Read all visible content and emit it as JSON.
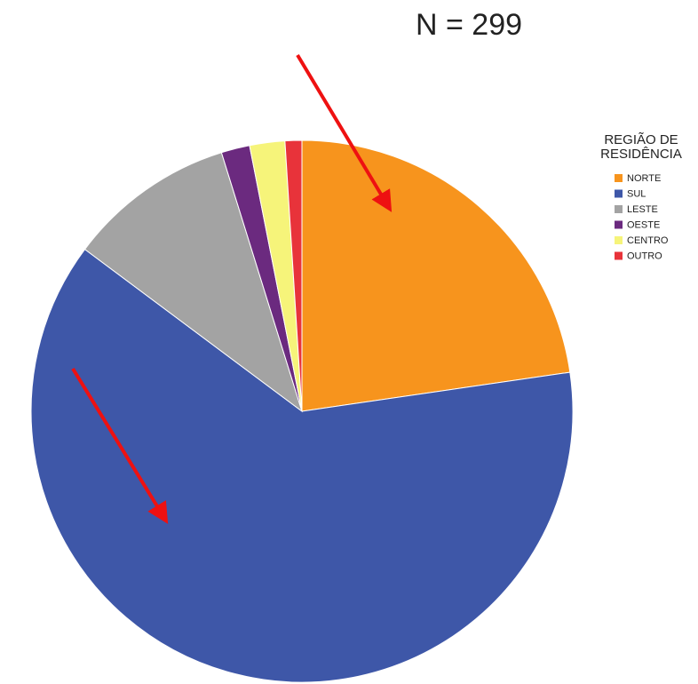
{
  "chart_data": {
    "type": "pie",
    "annotation": "N = 299",
    "legend_title": [
      "REGIÃO DE",
      "RESIDÊNCIA"
    ],
    "categories": [
      "NORTE",
      "SUL",
      "LESTE",
      "OESTE",
      "CENTRO",
      "OUTRO"
    ],
    "values": [
      22.7,
      62.5,
      10.0,
      1.7,
      2.1,
      1.0
    ],
    "colors": [
      "#f7941d",
      "#3e57a8",
      "#a3a3a3",
      "#6b2a7f",
      "#f6f47a",
      "#e8333a"
    ],
    "legend": "right"
  }
}
